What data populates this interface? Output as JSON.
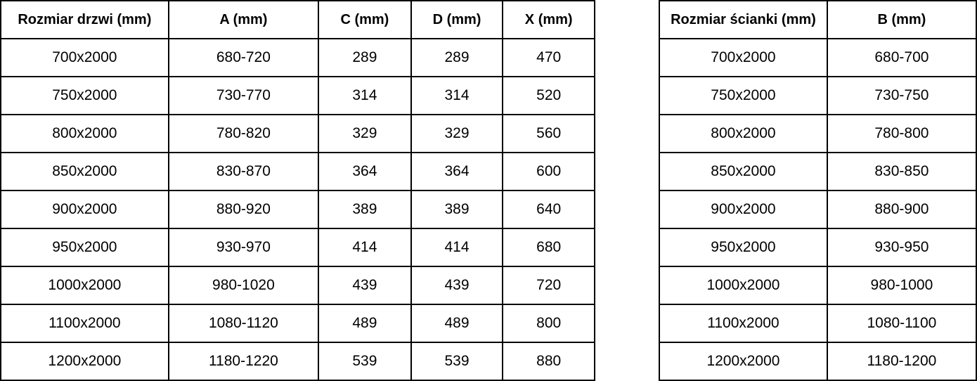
{
  "tables": [
    {
      "name": "door-size-table",
      "headers": [
        "Rozmiar drzwi (mm)",
        "A (mm)",
        "C (mm)",
        "D (mm)",
        "X (mm)"
      ],
      "rows": [
        [
          "700x2000",
          "680-720",
          "289",
          "289",
          "470"
        ],
        [
          "750x2000",
          "730-770",
          "314",
          "314",
          "520"
        ],
        [
          "800x2000",
          "780-820",
          "329",
          "329",
          "560"
        ],
        [
          "850x2000",
          "830-870",
          "364",
          "364",
          "600"
        ],
        [
          "900x2000",
          "880-920",
          "389",
          "389",
          "640"
        ],
        [
          "950x2000",
          "930-970",
          "414",
          "414",
          "680"
        ],
        [
          "1000x2000",
          "980-1020",
          "439",
          "439",
          "720"
        ],
        [
          "1100x2000",
          "1080-1120",
          "489",
          "489",
          "800"
        ],
        [
          "1200x2000",
          "1180-1220",
          "539",
          "539",
          "880"
        ]
      ]
    },
    {
      "name": "wall-panel-size-table",
      "headers": [
        "Rozmiar ścianki (mm)",
        "B (mm)"
      ],
      "rows": [
        [
          "700x2000",
          "680-700"
        ],
        [
          "750x2000",
          "730-750"
        ],
        [
          "800x2000",
          "780-800"
        ],
        [
          "850x2000",
          "830-850"
        ],
        [
          "900x2000",
          "880-900"
        ],
        [
          "950x2000",
          "930-950"
        ],
        [
          "1000x2000",
          "980-1000"
        ],
        [
          "1100x2000",
          "1080-1100"
        ],
        [
          "1200x2000",
          "1180-1200"
        ]
      ]
    }
  ],
  "colors": {
    "border": "#000000",
    "text": "#000000",
    "background": "#ffffff"
  }
}
